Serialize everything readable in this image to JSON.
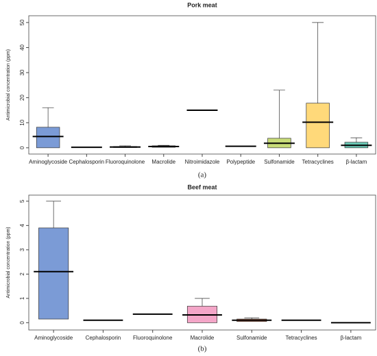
{
  "chart_data": [
    {
      "type": "box",
      "title": "Pork meat",
      "ylabel": "Antimicrobial concentration (ppm)",
      "caption": "(a)",
      "categories": [
        "Aminoglycoside",
        "Cephalosporin",
        "Fluoroquinolone",
        "Macrolide",
        "Nitroimidazole",
        "Polypeptide",
        "Sulfonamide",
        "Tetracyclines",
        "β-lactam"
      ],
      "q1": [
        0,
        0.2,
        0.1,
        0.2,
        15,
        0.6,
        0,
        0,
        0
      ],
      "median": [
        4.5,
        0.2,
        0.3,
        0.5,
        15,
        0.6,
        1.8,
        10.2,
        1
      ],
      "q3": [
        8.2,
        0.2,
        0.5,
        0.8,
        15,
        0.6,
        3.8,
        17.8,
        2.2
      ],
      "min": [
        0,
        0.2,
        0.1,
        0.2,
        15,
        0.6,
        0,
        0,
        0
      ],
      "max": [
        16,
        0.2,
        0.8,
        1,
        15,
        0.6,
        23,
        50,
        4
      ],
      "colors": [
        "#7b9bd6",
        "#999999",
        "#bbbbbb",
        "#aaaaaa",
        "#999999",
        "#999999",
        "#c8dc78",
        "#ffd97a",
        "#6cc9b6"
      ],
      "ylim": [
        -2.5,
        52.7
      ],
      "yticks": [
        0,
        10,
        20,
        30,
        40,
        50
      ]
    },
    {
      "type": "box",
      "title": "Beef meat",
      "ylabel": "Antimicrobial concentration (ppm)",
      "caption": "(b)",
      "categories": [
        "Aminoglycoside",
        "Cephalosporin",
        "Fluoroquinolone",
        "Macrolide",
        "Sulfonamide",
        "Tetracyclines",
        "β-lactam"
      ],
      "q1": [
        0.15,
        0.1,
        0.35,
        0,
        0.05,
        0.1,
        0
      ],
      "median": [
        2.1,
        0.1,
        0.35,
        0.32,
        0.1,
        0.1,
        0
      ],
      "q3": [
        3.9,
        0.1,
        0.35,
        0.68,
        0.15,
        0.1,
        0
      ],
      "min": [
        0.15,
        0.1,
        0.35,
        0,
        0.05,
        0.1,
        0
      ],
      "max": [
        5,
        0.1,
        0.35,
        1,
        0.2,
        0.1,
        0
      ],
      "colors": [
        "#7b9bd6",
        "#999999",
        "#999999",
        "#f4a6c8",
        "#e07a50",
        "#999999",
        "#999999"
      ],
      "ylim": [
        -0.3,
        5.25
      ],
      "yticks": [
        0,
        1,
        2,
        3,
        4,
        5
      ]
    }
  ]
}
